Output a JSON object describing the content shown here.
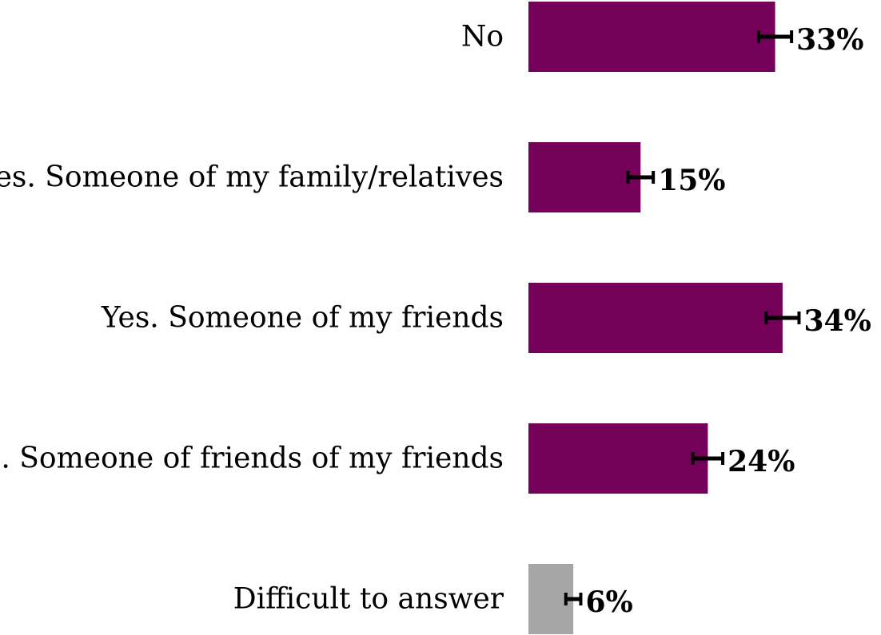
{
  "chart_data": {
    "type": "bar",
    "orientation": "horizontal",
    "categories": [
      "No",
      "Yes. Someone of my family/relatives",
      "Yes. Someone of my friends",
      "Yes. Someone of friends of my friends",
      "Difficult to answer"
    ],
    "values": [
      33,
      15,
      34,
      24,
      6
    ],
    "value_labels": [
      "33%",
      "15%",
      "34%",
      "24%",
      "6%"
    ],
    "error_margin": [
      2.2,
      1.7,
      2.2,
      2.0,
      1.0
    ],
    "bar_colors": [
      "#74005a",
      "#74005a",
      "#74005a",
      "#74005a",
      "#a6a6a6"
    ],
    "title": "",
    "xlabel": "",
    "ylabel": "",
    "xlim": [
      0,
      40
    ],
    "grid": false,
    "legend": "none",
    "error_bar_color": "#000000"
  }
}
